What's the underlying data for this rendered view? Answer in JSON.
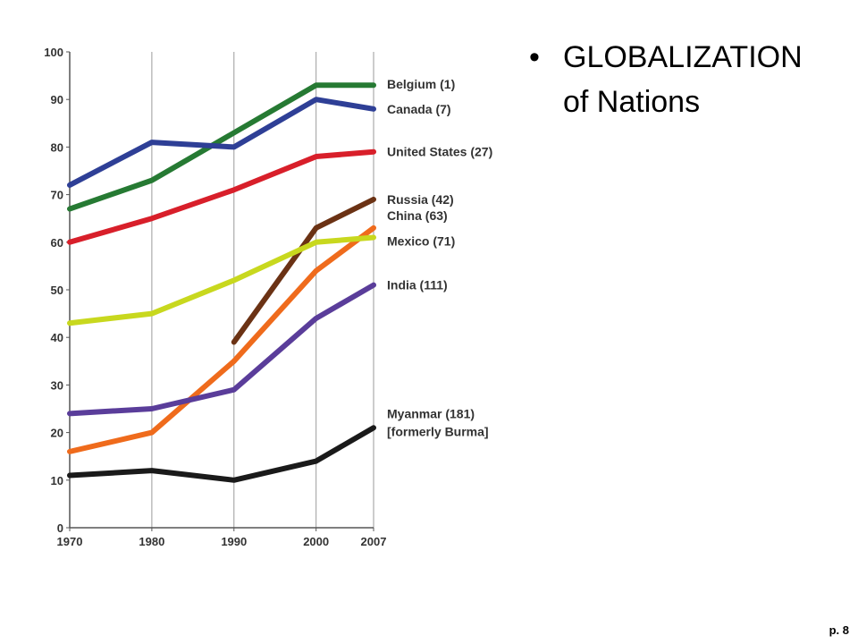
{
  "slide": {
    "bullet": "•",
    "title_line1": "GLOBALIZATION",
    "title_line2": "of Nations",
    "page_number": "p. 8"
  },
  "chart_data": {
    "type": "line",
    "x": [
      1970,
      1980,
      1990,
      2000,
      2007
    ],
    "x_ticks": [
      "1970",
      "1980",
      "1990",
      "2000",
      "2007"
    ],
    "y_ticks": [
      "0",
      "10",
      "20",
      "30",
      "40",
      "50",
      "60",
      "70",
      "80",
      "90",
      "100"
    ],
    "ylim": [
      0,
      100
    ],
    "xlim": [
      1970,
      2007
    ],
    "grid": "vertical lines at x ticks",
    "series": [
      {
        "name": "Belgium (1)",
        "color": "#267a33",
        "points": [
          [
            1970,
            67
          ],
          [
            1980,
            73
          ],
          [
            1990,
            83
          ],
          [
            2000,
            93
          ],
          [
            2007,
            93
          ]
        ]
      },
      {
        "name": "Canada (7)",
        "color": "#2e3f96",
        "points": [
          [
            1970,
            72
          ],
          [
            1980,
            81
          ],
          [
            1990,
            80
          ],
          [
            2000,
            90
          ],
          [
            2007,
            88
          ]
        ]
      },
      {
        "name": "United States (27)",
        "color": "#d81f2a",
        "points": [
          [
            1970,
            60
          ],
          [
            1980,
            65
          ],
          [
            1990,
            71
          ],
          [
            2000,
            78
          ],
          [
            2007,
            79
          ]
        ]
      },
      {
        "name": "Russia (42)",
        "color": "#6b3214",
        "points": [
          [
            1990,
            39
          ],
          [
            2000,
            63
          ],
          [
            2007,
            69
          ]
        ]
      },
      {
        "name": "China (63)",
        "color": "#ef6b1c",
        "points": [
          [
            1970,
            16
          ],
          [
            1980,
            20
          ],
          [
            1990,
            35
          ],
          [
            2000,
            54
          ],
          [
            2007,
            63
          ]
        ]
      },
      {
        "name": "Mexico (71)",
        "color": "#c8d81e",
        "points": [
          [
            1970,
            43
          ],
          [
            1980,
            45
          ],
          [
            1990,
            52
          ],
          [
            2000,
            60
          ],
          [
            2007,
            61
          ]
        ]
      },
      {
        "name": "India (111)",
        "color": "#5a3d9a",
        "points": [
          [
            1970,
            24
          ],
          [
            1980,
            25
          ],
          [
            1990,
            29
          ],
          [
            2000,
            44
          ],
          [
            2007,
            51
          ]
        ]
      },
      {
        "name": "Myanmar (181)",
        "name_line2": "[formerly Burma]",
        "color": "#1a1a1a",
        "points": [
          [
            1970,
            11
          ],
          [
            1980,
            12
          ],
          [
            1990,
            10
          ],
          [
            2000,
            14
          ],
          [
            2007,
            21
          ]
        ]
      }
    ]
  }
}
